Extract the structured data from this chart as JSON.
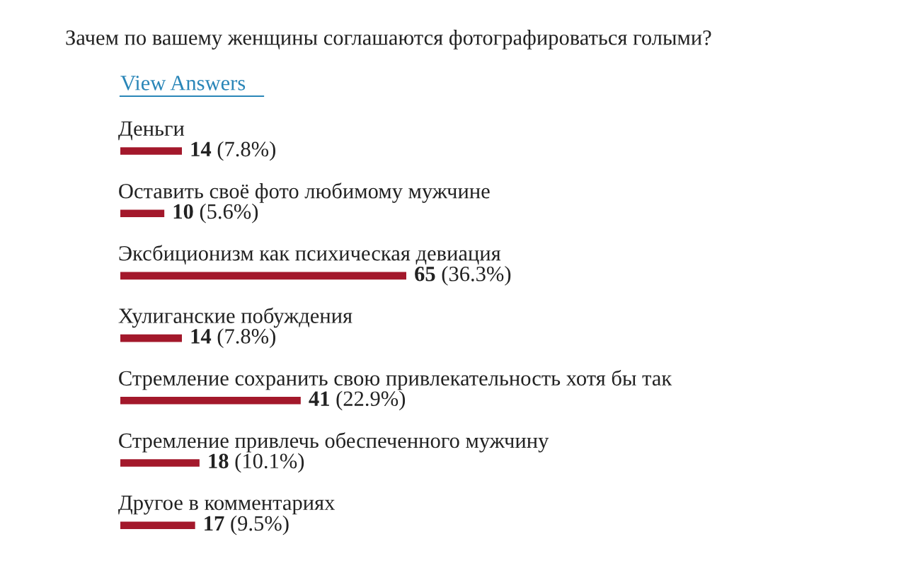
{
  "chart_data": {
    "type": "bar",
    "orientation": "horizontal",
    "title": "Зачем по вашему женщины соглашаются фотографироваться голыми?",
    "subtitle": "View Answers",
    "categories": [
      "Деньги",
      "Оставить своё фото любимому мужчине",
      "Эксбиционизм как психическая девиация",
      "Хулиганские побуждения",
      "Стремление сохранить свою привлекательность хотя бы так",
      "Стремление привлечь обеспеченного мужчину",
      "Другое в комментариях"
    ],
    "values": [
      14,
      10,
      65,
      14,
      41,
      18,
      17
    ],
    "value_labels": [
      "14 (7.8%)",
      "10 (5.6%)",
      "65 (36.3%)",
      "14 (7.8%)",
      "41 (22.9%)",
      "18 (10.1%)",
      "17 (9.5%)"
    ],
    "color": "#a3182b"
  }
}
